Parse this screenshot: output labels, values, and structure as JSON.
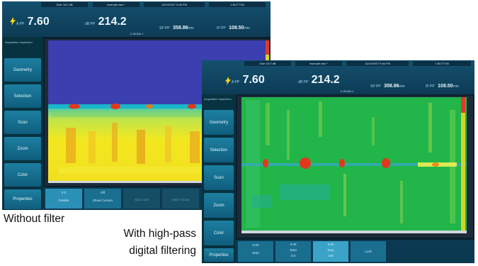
{
  "status_bar": {
    "gain": "Gain 16.0 dB",
    "filename": "example.wav *",
    "datetime": "10/24/2007 5:46 PM",
    "button": "1 BUTTON"
  },
  "readings": {
    "a": {
      "label": "A PP",
      "value": "7.60"
    },
    "b": {
      "label": "dB PP",
      "value": "214.2"
    },
    "sp": {
      "label": "SP PP",
      "value": "358.86",
      "unit": "mm"
    },
    "ip": {
      "label": "IP PP",
      "value": "108.50",
      "unit": "mm"
    }
  },
  "scan_title": "C-SCAN 1",
  "mode_label": "Acquisition Inspection",
  "sidebar_buttons": [
    "Geometry",
    "Selection",
    "Scan",
    "Zoom",
    "Color",
    "Properties"
  ],
  "bottom_tabs_left": [
    {
      "top": "0.0",
      "label": "Disable"
    },
    {
      "top": "Off",
      "label": "Show Cursors"
    },
    {
      "top": "",
      "label": "Sync Line"
    },
    {
      "top": "",
      "label": "Hold A-Scan"
    }
  ],
  "bottom_tabs_right": [
    {
      "top": "0.00",
      "label": "Start",
      "sub": ""
    },
    {
      "top": "0.00",
      "label": "Start",
      "sub": "0.0"
    },
    {
      "top": "0.00",
      "label": "Stop",
      "sub": "100"
    },
    {
      "top": "",
      "label": "Lock",
      "sub": ""
    }
  ],
  "captions": {
    "without": "Without filter",
    "with_line1": "With high-pass",
    "with_line2": "digital filtering"
  },
  "colors": {
    "blue_field": "#3b3fb0",
    "cyan_band": "#18b7c9",
    "yellow_field": "#f2e31c",
    "green_field": "#21b54a",
    "indication_red": "#e0381c"
  }
}
